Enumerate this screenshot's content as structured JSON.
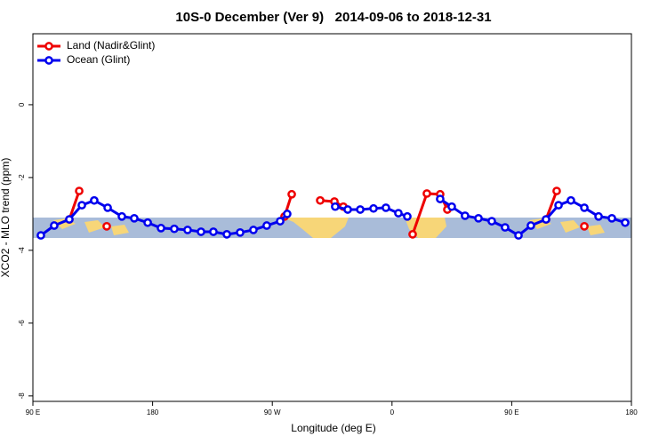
{
  "chart_data": {
    "type": "line",
    "title": "10S-0 December (Ver 9)   2014-09-06 to 2018-12-31",
    "x_label": "Longitude (deg E)",
    "y_label": "XCO2 - MLO trend (ppm)",
    "xlim": [
      90,
      540
    ],
    "xticks": [
      {
        "value": 90,
        "label": "90 E"
      },
      180,
      {
        "value": 270,
        "label": "90 W"
      },
      {
        "value": 360,
        "label": "0"
      },
      {
        "value": 450,
        "label": "90 E"
      },
      {
        "value": 540,
        "label": "180"
      }
    ],
    "ylim": [
      -8.15,
      1.95
    ],
    "yticks": [
      -8,
      -6,
      -4,
      -2,
      0
    ],
    "legend": "top-left",
    "series": [
      {
        "name": "Land (Nadir&Glint)",
        "color": "#ee0000",
        "x": [
          117.4,
          124.8,
          null,
          145.5,
          null,
          279.2,
          284.6,
          null,
          306.0,
          316.7,
          323.4,
          null,
          375.5,
          386.2,
          396.2,
          401.6,
          null,
          475.8,
          483.8,
          null,
          504.6
        ],
        "values": [
          -3.15,
          -2.37,
          null,
          -3.34,
          null,
          -3.07,
          -2.46,
          null,
          -2.63,
          -2.66,
          -2.8,
          null,
          -3.56,
          -2.44,
          -2.46,
          -2.88,
          null,
          -3.15,
          -2.37,
          null,
          -3.34
        ]
      },
      {
        "name": "Ocean (Glint)",
        "color": "#0000ee",
        "x": [
          96.0,
          106.0,
          117.4,
          126.8,
          136.1,
          146.2,
          156.9,
          166.2,
          176.3,
          186.3,
          196.3,
          206.3,
          216.4,
          225.7,
          235.8,
          245.8,
          255.8,
          265.8,
          275.9,
          281.2,
          null,
          317.3,
          326.7,
          336.1,
          346.1,
          355.4,
          364.8,
          371.5,
          null,
          396.2,
          404.9,
          414.9,
          425.0,
          435.0,
          445.0,
          455.1,
          464.4,
          475.8,
          485.2,
          494.5,
          504.6,
          515.3,
          525.3,
          535.3
        ],
        "values": [
          -3.59,
          -3.32,
          -3.15,
          -2.76,
          -2.63,
          -2.83,
          -3.07,
          -3.12,
          -3.24,
          -3.39,
          -3.41,
          -3.44,
          -3.49,
          -3.49,
          -3.56,
          -3.51,
          -3.44,
          -3.32,
          -3.2,
          -3.0,
          null,
          -2.8,
          -2.88,
          -2.88,
          -2.85,
          -2.83,
          -2.98,
          -3.07,
          null,
          -2.59,
          -2.8,
          -3.05,
          -3.12,
          -3.2,
          -3.37,
          -3.59,
          -3.32,
          -3.15,
          -2.76,
          -2.63,
          -2.83,
          -3.07,
          -3.12,
          -3.24
        ]
      }
    ]
  }
}
